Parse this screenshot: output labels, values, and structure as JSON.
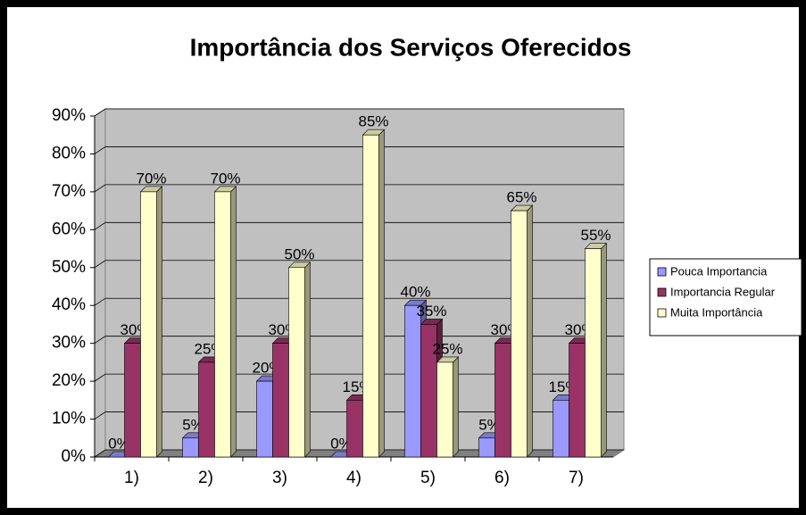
{
  "chart_data": {
    "type": "bar",
    "title": "Importância dos Serviços Oferecidos",
    "categories": [
      "1)",
      "2)",
      "3)",
      "4)",
      "5)",
      "6)",
      "7)"
    ],
    "series": [
      {
        "name": "Pouca Importancia",
        "color": "#9999ff",
        "values": [
          0,
          5,
          20,
          0,
          40,
          5,
          15
        ],
        "value_labels": [
          "0%",
          "5%",
          "20%",
          "0%",
          "40%",
          "5%",
          "15%"
        ]
      },
      {
        "name": "Importancia Regular",
        "color": "#993366",
        "values": [
          30,
          25,
          30,
          15,
          35,
          30,
          30
        ],
        "value_labels": [
          "30%",
          "25%",
          "30%",
          "15%",
          "35%",
          "30%",
          "30%"
        ]
      },
      {
        "name": "Muita Importância",
        "color": "#ffffcc",
        "values": [
          70,
          70,
          50,
          85,
          25,
          65,
          55
        ],
        "value_labels": [
          "70%",
          "70%",
          "50%",
          "85%",
          "25%",
          "65%",
          "55%"
        ]
      }
    ],
    "ylim": [
      0,
      90
    ],
    "yticks": [
      {
        "value": 0,
        "label": "0%"
      },
      {
        "value": 10,
        "label": "10%"
      },
      {
        "value": 20,
        "label": "20%"
      },
      {
        "value": 30,
        "label": "30%"
      },
      {
        "value": 40,
        "label": "40%"
      },
      {
        "value": 50,
        "label": "50%"
      },
      {
        "value": 60,
        "label": "60%"
      },
      {
        "value": 70,
        "label": "70%"
      },
      {
        "value": 80,
        "label": "80%"
      },
      {
        "value": 90,
        "label": "90%"
      }
    ],
    "grid": true,
    "legend": "right"
  }
}
